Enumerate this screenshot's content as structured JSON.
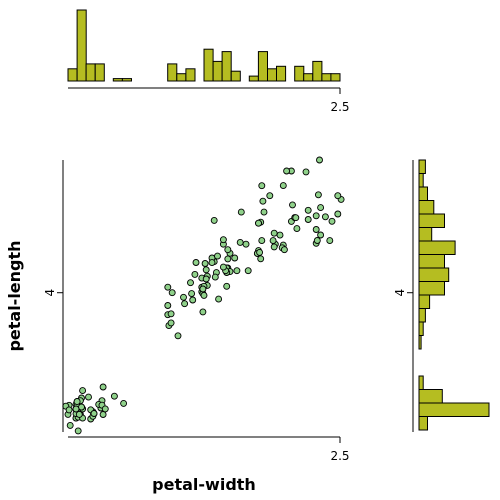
{
  "colors": {
    "hist_fill": "#b5bd21",
    "point_fill": "#8fd18a",
    "stroke": "#000000"
  },
  "chart_data": {
    "type": "scatter",
    "xlabel": "petal-width",
    "ylabel": "petal-length",
    "xlim": [
      0.1,
      2.5
    ],
    "ylim": [
      1.0,
      6.9
    ],
    "x_ticks": [
      2.5
    ],
    "y_ticks": [
      4
    ],
    "x_tick_labels": [
      "2.5"
    ],
    "y_tick_labels": [
      "4"
    ],
    "points": [
      [
        0.2,
        1.4
      ],
      [
        0.2,
        1.4
      ],
      [
        0.2,
        1.3
      ],
      [
        0.2,
        1.5
      ],
      [
        0.2,
        1.4
      ],
      [
        0.4,
        1.7
      ],
      [
        0.3,
        1.4
      ],
      [
        0.2,
        1.5
      ],
      [
        0.2,
        1.4
      ],
      [
        0.1,
        1.5
      ],
      [
        0.2,
        1.5
      ],
      [
        0.2,
        1.6
      ],
      [
        0.1,
        1.4
      ],
      [
        0.1,
        1.1
      ],
      [
        0.2,
        1.2
      ],
      [
        0.4,
        1.5
      ],
      [
        0.4,
        1.3
      ],
      [
        0.3,
        1.4
      ],
      [
        0.3,
        1.7
      ],
      [
        0.3,
        1.5
      ],
      [
        0.2,
        1.7
      ],
      [
        0.4,
        1.5
      ],
      [
        0.2,
        1.0
      ],
      [
        0.5,
        1.7
      ],
      [
        0.2,
        1.9
      ],
      [
        0.2,
        1.6
      ],
      [
        0.4,
        1.6
      ],
      [
        0.2,
        1.5
      ],
      [
        0.2,
        1.4
      ],
      [
        0.2,
        1.6
      ],
      [
        0.2,
        1.6
      ],
      [
        0.4,
        1.5
      ],
      [
        0.1,
        1.5
      ],
      [
        0.2,
        1.4
      ],
      [
        0.2,
        1.5
      ],
      [
        0.2,
        1.2
      ],
      [
        0.2,
        1.3
      ],
      [
        0.1,
        1.4
      ],
      [
        0.2,
        1.3
      ],
      [
        0.2,
        1.5
      ],
      [
        0.3,
        1.3
      ],
      [
        0.3,
        1.3
      ],
      [
        0.2,
        1.3
      ],
      [
        0.6,
        1.6
      ],
      [
        0.4,
        1.9
      ],
      [
        0.3,
        1.4
      ],
      [
        0.2,
        1.6
      ],
      [
        0.2,
        1.4
      ],
      [
        0.2,
        1.5
      ],
      [
        0.2,
        1.4
      ],
      [
        1.4,
        4.7
      ],
      [
        1.5,
        4.5
      ],
      [
        1.5,
        4.9
      ],
      [
        1.3,
        4.0
      ],
      [
        1.5,
        4.6
      ],
      [
        1.3,
        4.5
      ],
      [
        1.6,
        4.7
      ],
      [
        1.0,
        3.3
      ],
      [
        1.3,
        4.6
      ],
      [
        1.4,
        3.9
      ],
      [
        1.0,
        3.5
      ],
      [
        1.5,
        4.2
      ],
      [
        1.0,
        4.0
      ],
      [
        1.4,
        4.7
      ],
      [
        1.3,
        3.6
      ],
      [
        1.4,
        4.4
      ],
      [
        1.5,
        4.5
      ],
      [
        1.0,
        4.1
      ],
      [
        1.5,
        4.5
      ],
      [
        1.1,
        3.9
      ],
      [
        1.8,
        4.8
      ],
      [
        1.3,
        4.0
      ],
      [
        1.5,
        4.9
      ],
      [
        1.2,
        4.7
      ],
      [
        1.3,
        4.3
      ],
      [
        1.4,
        4.4
      ],
      [
        1.4,
        4.8
      ],
      [
        1.7,
        5.0
      ],
      [
        1.5,
        4.5
      ],
      [
        1.0,
        3.5
      ],
      [
        1.1,
        3.8
      ],
      [
        1.0,
        3.7
      ],
      [
        1.2,
        3.9
      ],
      [
        1.6,
        5.1
      ],
      [
        1.5,
        4.5
      ],
      [
        1.6,
        4.5
      ],
      [
        1.5,
        4.7
      ],
      [
        1.3,
        4.4
      ],
      [
        1.3,
        4.1
      ],
      [
        1.3,
        4.0
      ],
      [
        1.2,
        4.4
      ],
      [
        1.4,
        4.6
      ],
      [
        1.2,
        4.0
      ],
      [
        1.0,
        3.3
      ],
      [
        1.3,
        4.2
      ],
      [
        1.2,
        4.2
      ],
      [
        1.3,
        4.2
      ],
      [
        1.3,
        4.3
      ],
      [
        1.1,
        3.0
      ],
      [
        1.3,
        4.1
      ],
      [
        2.5,
        6.0
      ],
      [
        1.9,
        5.1
      ],
      [
        2.1,
        5.9
      ],
      [
        1.8,
        5.6
      ],
      [
        2.2,
        5.8
      ],
      [
        2.1,
        6.6
      ],
      [
        1.7,
        4.5
      ],
      [
        1.8,
        6.3
      ],
      [
        1.8,
        5.8
      ],
      [
        2.5,
        6.1
      ],
      [
        2.0,
        5.1
      ],
      [
        1.9,
        5.3
      ],
      [
        2.1,
        5.5
      ],
      [
        2.0,
        5.0
      ],
      [
        2.4,
        5.1
      ],
      [
        2.3,
        5.3
      ],
      [
        1.8,
        5.5
      ],
      [
        2.2,
        6.7
      ],
      [
        2.3,
        6.9
      ],
      [
        1.5,
        5.0
      ],
      [
        2.3,
        5.7
      ],
      [
        2.0,
        4.9
      ],
      [
        2.0,
        6.7
      ],
      [
        1.8,
        4.9
      ],
      [
        2.1,
        5.7
      ],
      [
        1.8,
        6.0
      ],
      [
        1.8,
        4.8
      ],
      [
        1.8,
        4.9
      ],
      [
        2.1,
        5.6
      ],
      [
        1.6,
        5.8
      ],
      [
        1.9,
        6.1
      ],
      [
        2.0,
        6.4
      ],
      [
        2.2,
        5.6
      ],
      [
        1.5,
        5.1
      ],
      [
        1.4,
        5.6
      ],
      [
        2.3,
        6.1
      ],
      [
        2.4,
        5.6
      ],
      [
        1.8,
        5.5
      ],
      [
        1.8,
        4.8
      ],
      [
        2.1,
        5.4
      ],
      [
        2.4,
        5.6
      ],
      [
        2.3,
        5.1
      ],
      [
        1.9,
        5.1
      ],
      [
        2.3,
        5.9
      ],
      [
        2.5,
        5.7
      ],
      [
        2.3,
        5.2
      ],
      [
        1.9,
        5.0
      ],
      [
        2.0,
        5.2
      ],
      [
        2.3,
        5.4
      ],
      [
        1.8,
        5.1
      ]
    ],
    "x_hist_bins": 30,
    "y_hist_bins": 20
  }
}
